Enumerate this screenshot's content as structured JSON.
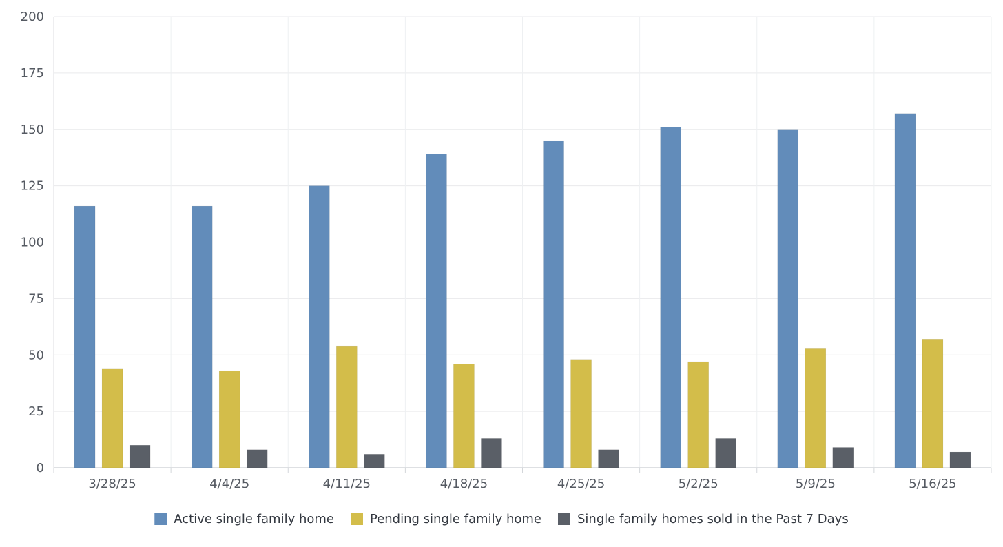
{
  "chart_data": {
    "type": "bar",
    "title": "",
    "xlabel": "",
    "ylabel": "",
    "categories": [
      "3/28/25",
      "4/4/25",
      "4/11/25",
      "4/18/25",
      "4/25/25",
      "5/2/25",
      "5/9/25",
      "5/16/25"
    ],
    "series": [
      {
        "name": "Active single family home",
        "color": "#628cba",
        "values": [
          116,
          116,
          125,
          139,
          145,
          151,
          150,
          157
        ]
      },
      {
        "name": "Pending single family home",
        "color": "#d3bd4a",
        "values": [
          44,
          43,
          54,
          46,
          48,
          47,
          53,
          57
        ]
      },
      {
        "name": "Single family homes sold in the Past 7 Days",
        "color": "#5a5f67",
        "values": [
          10,
          8,
          6,
          13,
          8,
          13,
          9,
          7
        ]
      }
    ],
    "ylim": [
      0,
      200
    ],
    "yticks": [
      0,
      25,
      50,
      75,
      100,
      125,
      150,
      175,
      200
    ],
    "grid": true,
    "legend_position": "bottom"
  }
}
